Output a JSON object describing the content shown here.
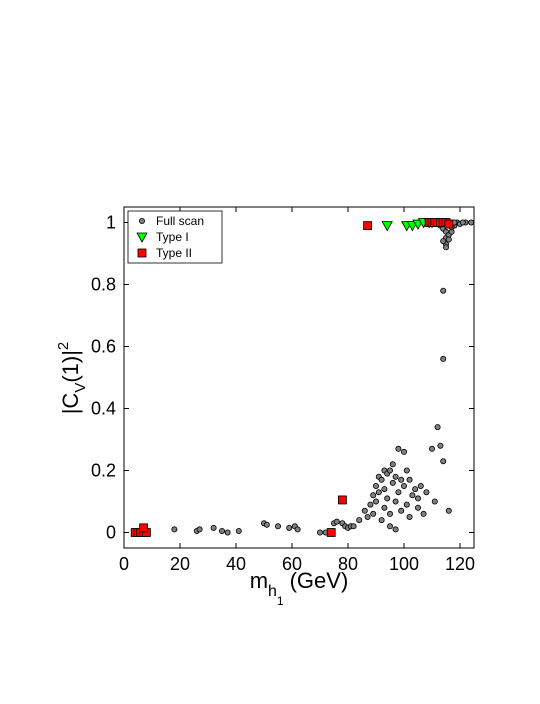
{
  "chart_data": {
    "type": "scatter",
    "xlabel": [
      "m",
      "h",
      "1",
      "(GeV)"
    ],
    "ylabel": [
      "|C",
      "V",
      "(1)|",
      "2"
    ],
    "xlim": [
      0,
      125
    ],
    "ylim": [
      -0.05,
      1.05
    ],
    "xticks": [
      0,
      20,
      40,
      60,
      80,
      100,
      120
    ],
    "yticks": [
      0,
      0.2,
      0.4,
      0.6,
      0.8,
      1
    ],
    "legend": "upper left",
    "series": [
      {
        "name": "Full scan",
        "color": "#808080",
        "marker": "circle",
        "x": [
          4,
          5,
          6,
          7,
          8,
          7,
          18,
          26,
          27,
          32,
          35,
          37,
          41,
          50,
          51,
          55,
          59,
          61,
          62,
          70,
          72,
          75,
          76,
          78,
          79,
          80,
          81,
          82,
          84,
          86,
          87,
          88,
          89,
          89,
          90,
          90,
          91,
          91,
          92,
          92,
          93,
          93,
          93,
          94,
          94,
          95,
          95,
          95,
          96,
          96,
          97,
          97,
          97,
          98,
          98,
          99,
          99,
          100,
          100,
          101,
          101,
          102,
          102,
          103,
          104,
          105,
          105,
          106,
          107,
          108,
          110,
          111,
          112,
          113,
          114,
          116,
          114,
          114,
          108,
          110,
          112,
          113,
          114,
          115,
          115,
          115,
          116,
          116,
          117,
          117,
          118,
          119,
          120,
          122,
          124,
          114,
          115,
          116,
          117,
          118,
          121
        ],
        "values": [
          0,
          0,
          0.005,
          0.01,
          0,
          0.015,
          0.01,
          0.005,
          0.01,
          0.015,
          0.005,
          0,
          0.005,
          0.03,
          0.025,
          0.02,
          0.015,
          0.02,
          0.01,
          0,
          0,
          0.03,
          0.035,
          0.03,
          0.02,
          0.015,
          0.02,
          0.02,
          0.04,
          0.07,
          0.05,
          0.09,
          0.12,
          0.06,
          0.1,
          0.15,
          0.13,
          0.18,
          0.17,
          0.04,
          0.2,
          0.14,
          0.08,
          0.19,
          0.11,
          0.2,
          0.02,
          0.06,
          0.16,
          0.22,
          0.1,
          0.18,
          0.01,
          0.27,
          0.13,
          0.17,
          0.07,
          0.26,
          0.15,
          0.2,
          0.09,
          0.17,
          0.05,
          0.12,
          0.14,
          0.08,
          0.11,
          0.15,
          0.06,
          0.13,
          0.27,
          0.1,
          0.34,
          0.28,
          0.23,
          0.07,
          0.78,
          0.56,
          1,
          1,
          0.995,
          0.99,
          0.98,
          0.97,
          0.95,
          0.93,
          0.96,
          0.99,
          0.97,
          1,
          0.99,
          1,
          0.995,
          1,
          1,
          0.94,
          0.92,
          0.945,
          0.985,
          1,
          1
        ]
      },
      {
        "name": "Type I",
        "color": "#00ff00",
        "marker": "triangle",
        "x": [
          94,
          101,
          103,
          105,
          107,
          109,
          110
        ],
        "values": [
          0.99,
          0.99,
          0.99,
          0.995,
          1,
          1,
          1
        ]
      },
      {
        "name": "Type II",
        "color": "#ff0000",
        "marker": "square",
        "x": [
          4,
          5,
          6,
          7,
          8,
          7,
          74,
          78,
          87,
          109,
          110,
          111,
          112,
          113,
          114,
          115,
          116
        ],
        "values": [
          0,
          0,
          0,
          0,
          0,
          0.015,
          0,
          0.105,
          0.99,
          1,
          1,
          1,
          1,
          1,
          1,
          1,
          0.995
        ]
      }
    ]
  }
}
